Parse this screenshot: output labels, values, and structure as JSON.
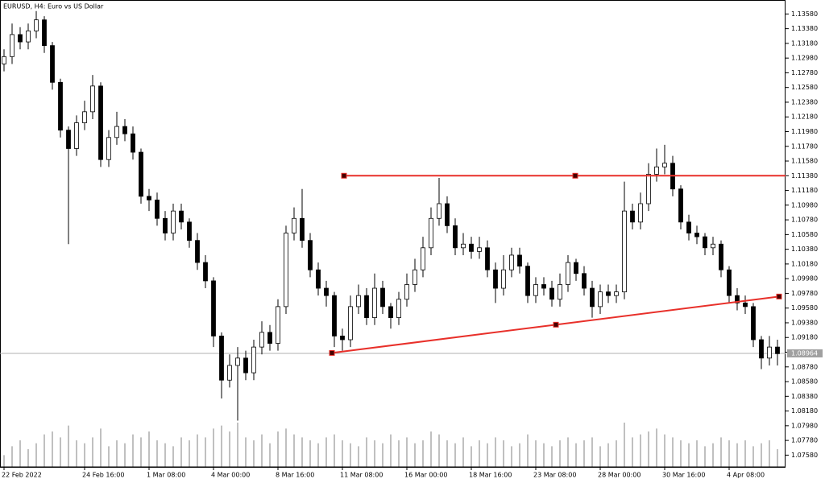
{
  "chart_data": {
    "type": "candlestick",
    "title": "EURUSD, H4:  Euro vs US Dollar",
    "categories": [
      "22 Feb 2022",
      null,
      null,
      null,
      null,
      null,
      null,
      null,
      null,
      null,
      "24 Feb 16:00",
      null,
      null,
      null,
      null,
      null,
      null,
      null,
      "1 Mar 08:00",
      null,
      null,
      null,
      null,
      null,
      null,
      null,
      "4 Mar 00:00",
      null,
      null,
      null,
      null,
      null,
      null,
      null,
      "8 Mar 16:00",
      null,
      null,
      null,
      null,
      null,
      null,
      null,
      "11 Mar 08:00",
      null,
      null,
      null,
      null,
      null,
      null,
      null,
      "16 Mar 00:00",
      null,
      null,
      null,
      null,
      null,
      null,
      null,
      "18 Mar 16:00",
      null,
      null,
      null,
      null,
      null,
      null,
      null,
      "23 Mar 08:00",
      null,
      null,
      null,
      null,
      null,
      null,
      null,
      "28 Mar 00:00",
      null,
      null,
      null,
      null,
      null,
      null,
      null,
      "30 Mar 16:00",
      null,
      null,
      null,
      null,
      null,
      null,
      null,
      "4 Apr 08:00",
      null,
      null,
      null,
      null,
      null,
      null
    ],
    "open": [
      1.129,
      1.13,
      1.133,
      1.132,
      1.1335,
      1.135,
      1.1315,
      1.1265,
      1.12,
      1.1175,
      1.121,
      1.1225,
      1.126,
      1.116,
      1.119,
      1.1205,
      1.1195,
      1.117,
      1.111,
      1.1105,
      1.108,
      1.106,
      1.109,
      1.1075,
      1.105,
      1.102,
      1.0995,
      1.092,
      1.086,
      1.088,
      1.089,
      1.087,
      1.0905,
      1.0925,
      1.091,
      1.096,
      1.106,
      1.108,
      1.105,
      1.101,
      1.0985,
      1.0975,
      1.092,
      1.0915,
      1.096,
      1.0975,
      1.0945,
      1.0985,
      1.096,
      1.0945,
      1.097,
      1.099,
      1.101,
      1.104,
      1.108,
      1.11,
      1.107,
      1.104,
      1.1045,
      1.1035,
      1.104,
      1.101,
      1.0985,
      1.101,
      1.103,
      1.1015,
      1.0975,
      1.099,
      1.0985,
      1.097,
      1.099,
      1.102,
      1.1005,
      1.0985,
      1.096,
      1.098,
      1.0975,
      1.098,
      1.109,
      1.1075,
      1.11,
      1.114,
      1.115,
      1.1155,
      1.112,
      1.1075,
      1.106,
      1.1055,
      1.104,
      1.1045,
      1.101,
      1.0975,
      1.0965,
      1.096,
      1.0915,
      1.089,
      1.0905
    ],
    "high": [
      1.131,
      1.1345,
      1.134,
      1.1345,
      1.1362,
      1.1355,
      1.132,
      1.127,
      1.1205,
      1.122,
      1.124,
      1.1275,
      1.1265,
      1.12,
      1.1225,
      1.1215,
      1.1205,
      1.1175,
      1.112,
      1.1115,
      1.109,
      1.11,
      1.11,
      1.108,
      1.106,
      1.103,
      1.1,
      1.0925,
      1.0895,
      1.0905,
      1.09,
      1.0915,
      1.094,
      1.0935,
      1.097,
      1.107,
      1.1095,
      1.112,
      1.106,
      1.102,
      1.0995,
      1.098,
      1.093,
      1.0975,
      1.099,
      1.0985,
      1.1005,
      1.0995,
      1.0965,
      1.098,
      1.1005,
      1.1025,
      1.1055,
      1.1095,
      1.1135,
      1.111,
      1.108,
      1.106,
      1.1055,
      1.1055,
      1.105,
      1.102,
      1.103,
      1.104,
      1.104,
      1.102,
      1.1,
      1.1,
      1.0995,
      1.1005,
      1.103,
      1.1025,
      1.1015,
      1.0995,
      1.099,
      1.099,
      1.099,
      1.113,
      1.11,
      1.1115,
      1.1155,
      1.1175,
      1.118,
      1.1165,
      1.1125,
      1.1085,
      1.107,
      1.106,
      1.1055,
      1.105,
      1.1015,
      1.0985,
      1.0975,
      1.0965,
      1.092,
      1.092,
      1.0915
    ],
    "low": [
      1.128,
      1.129,
      1.131,
      1.131,
      1.1325,
      1.1305,
      1.1255,
      1.119,
      1.1045,
      1.1165,
      1.12,
      1.1215,
      1.115,
      1.115,
      1.118,
      1.1185,
      1.116,
      1.11,
      1.109,
      1.107,
      1.105,
      1.105,
      1.1065,
      1.104,
      1.101,
      1.0985,
      1.0905,
      1.0835,
      1.085,
      1.0805,
      1.086,
      1.086,
      1.0895,
      1.09,
      1.09,
      1.095,
      1.105,
      1.104,
      1.1,
      1.0975,
      1.096,
      1.0905,
      1.09,
      1.0905,
      1.095,
      1.0935,
      1.0935,
      1.095,
      1.093,
      1.0935,
      1.096,
      1.098,
      1.1,
      1.103,
      1.107,
      1.106,
      1.103,
      1.103,
      1.1025,
      1.1025,
      1.1,
      1.0965,
      1.0975,
      1.1,
      1.1005,
      1.0965,
      1.0965,
      1.0975,
      1.096,
      1.096,
      1.098,
      1.0995,
      1.0975,
      1.0945,
      1.095,
      1.0965,
      1.0965,
      1.097,
      1.1065,
      1.1065,
      1.109,
      1.113,
      1.114,
      1.111,
      1.1065,
      1.105,
      1.1045,
      1.103,
      1.103,
      1.1,
      1.0965,
      1.0955,
      1.095,
      1.0905,
      1.0875,
      1.088,
      1.088
    ],
    "close": [
      1.13,
      1.133,
      1.132,
      1.1335,
      1.135,
      1.1315,
      1.1265,
      1.12,
      1.1175,
      1.121,
      1.1225,
      1.126,
      1.116,
      1.119,
      1.1205,
      1.1195,
      1.117,
      1.111,
      1.1105,
      1.108,
      1.106,
      1.109,
      1.1075,
      1.105,
      1.102,
      1.0995,
      1.092,
      1.086,
      1.088,
      1.089,
      1.087,
      1.0905,
      1.0925,
      1.091,
      1.096,
      1.106,
      1.108,
      1.105,
      1.101,
      1.0985,
      1.0975,
      1.092,
      1.0915,
      1.096,
      1.0975,
      1.0945,
      1.0985,
      1.096,
      1.0945,
      1.097,
      1.099,
      1.101,
      1.104,
      1.108,
      1.11,
      1.107,
      1.104,
      1.1045,
      1.1035,
      1.104,
      1.101,
      1.0985,
      1.101,
      1.103,
      1.1015,
      1.0975,
      1.099,
      1.0985,
      1.097,
      1.099,
      1.102,
      1.1005,
      1.0985,
      1.096,
      1.098,
      1.0975,
      1.098,
      1.109,
      1.1075,
      1.11,
      1.114,
      1.115,
      1.1155,
      1.112,
      1.1075,
      1.106,
      1.1055,
      1.104,
      1.1045,
      1.101,
      1.0975,
      1.0965,
      1.096,
      1.0915,
      1.089,
      1.0905,
      1.0896
    ],
    "volumes": [
      20,
      35,
      45,
      30,
      40,
      55,
      60,
      50,
      70,
      45,
      40,
      50,
      65,
      35,
      45,
      40,
      55,
      50,
      60,
      45,
      40,
      35,
      50,
      45,
      55,
      50,
      65,
      70,
      60,
      75,
      50,
      45,
      55,
      40,
      60,
      65,
      55,
      50,
      45,
      40,
      50,
      55,
      45,
      40,
      35,
      50,
      45,
      40,
      55,
      45,
      50,
      40,
      45,
      60,
      55,
      45,
      40,
      50,
      35,
      45,
      40,
      50,
      45,
      35,
      40,
      55,
      45,
      40,
      35,
      45,
      50,
      40,
      45,
      50,
      35,
      40,
      45,
      75,
      50,
      55,
      60,
      65,
      55,
      50,
      45,
      40,
      45,
      35,
      40,
      50,
      45,
      40,
      45,
      35,
      40,
      45,
      30
    ],
    "up_color": "#ffffff",
    "down_color": "#000000",
    "outline_color": "#000000",
    "volume_color": "#808080",
    "ylim": [
      1.0742,
      1.1377
    ],
    "yticks": [
      {
        "value": 1.0758,
        "label": "1.07580"
      },
      {
        "value": 1.0778,
        "label": "1.07780"
      },
      {
        "value": 1.0798,
        "label": "1.07980"
      },
      {
        "value": 1.0818,
        "label": "1.08180"
      },
      {
        "value": 1.0838,
        "label": "1.08380"
      },
      {
        "value": 1.0858,
        "label": "1.08580"
      },
      {
        "value": 1.0878,
        "label": "1.08780"
      },
      {
        "value": 1.0898,
        "label": "1.08980"
      },
      {
        "value": 1.0918,
        "label": "1.09180"
      },
      {
        "value": 1.0938,
        "label": "1.09380"
      },
      {
        "value": 1.0958,
        "label": "1.09580"
      },
      {
        "value": 1.0978,
        "label": "1.09780"
      },
      {
        "value": 1.0998,
        "label": "1.09980"
      },
      {
        "value": 1.1018,
        "label": "1.10180"
      },
      {
        "value": 1.1038,
        "label": "1.10380"
      },
      {
        "value": 1.1058,
        "label": "1.10580"
      },
      {
        "value": 1.1078,
        "label": "1.10780"
      },
      {
        "value": 1.1098,
        "label": "1.10980"
      },
      {
        "value": 1.1118,
        "label": "1.11180"
      },
      {
        "value": 1.1138,
        "label": "1.11380"
      },
      {
        "value": 1.1158,
        "label": "1.11580"
      },
      {
        "value": 1.1178,
        "label": "1.11780"
      },
      {
        "value": 1.1198,
        "label": "1.11980"
      },
      {
        "value": 1.1218,
        "label": "1.12180"
      },
      {
        "value": 1.1238,
        "label": "1.12380"
      },
      {
        "value": 1.1258,
        "label": "1.12580"
      },
      {
        "value": 1.1278,
        "label": "1.12780"
      },
      {
        "value": 1.1298,
        "label": "1.12980"
      },
      {
        "value": 1.1318,
        "label": "1.13180"
      },
      {
        "value": 1.1338,
        "label": "1.13380"
      },
      {
        "value": 1.1358,
        "label": "1.13580"
      }
    ],
    "grid": false,
    "last_price": {
      "value": 1.08964,
      "label": "1.08964"
    },
    "trendlines": [
      {
        "color": "#e8302a",
        "ray": true,
        "x": [
          42.2,
          70.9
        ],
        "y": [
          1.1138,
          1.1138
        ]
      },
      {
        "color": "#e8302a",
        "ray": false,
        "x": [
          40.7,
          68.5,
          96.2
        ],
        "y": [
          1.0897,
          1.09354,
          1.09737
        ]
      }
    ]
  }
}
